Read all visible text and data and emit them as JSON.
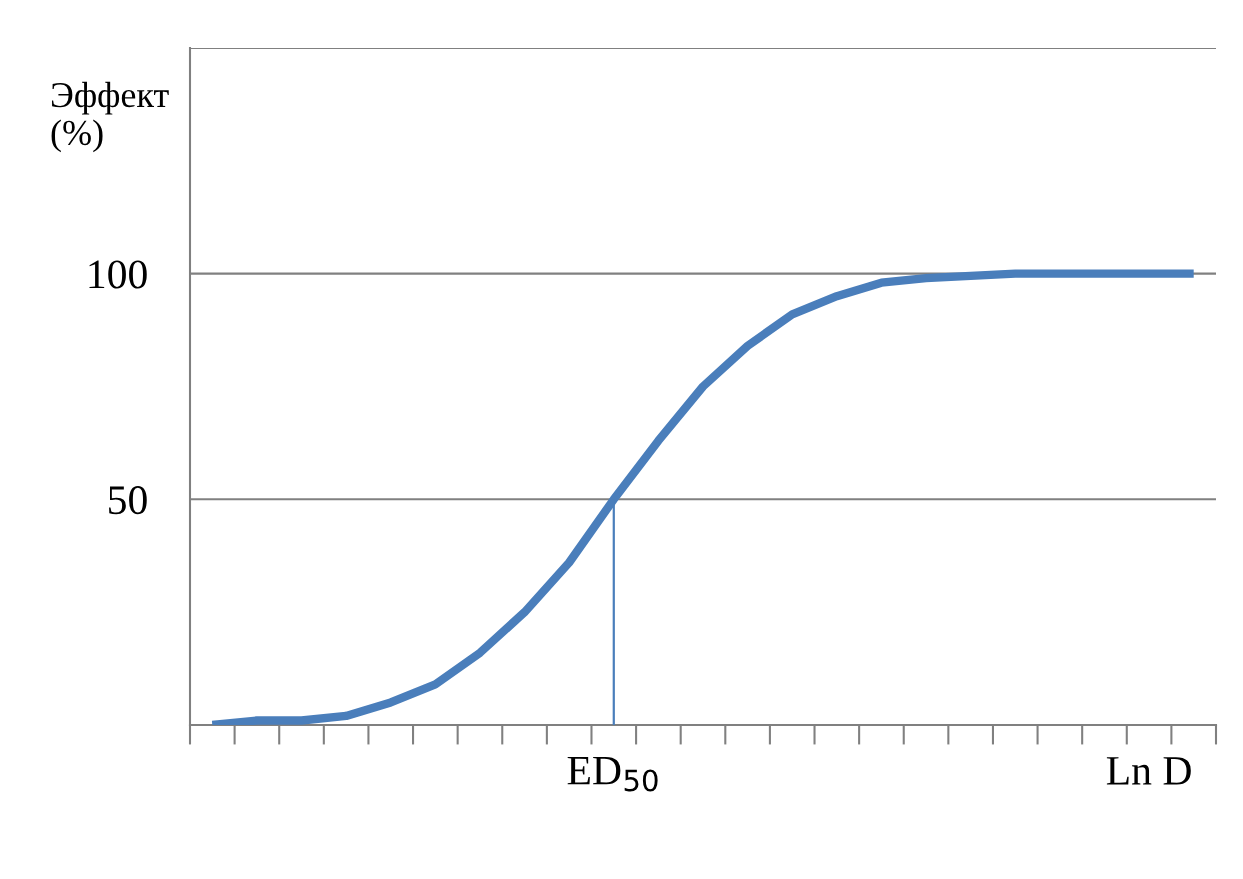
{
  "chart_data": {
    "type": "line",
    "ylabel": "Эффект\n(%)",
    "categories": [
      null,
      null,
      null,
      null,
      null,
      null,
      null,
      null,
      null,
      "ED$_{50}$",
      null,
      null,
      null,
      null,
      null,
      null,
      null,
      null,
      null,
      null,
      null,
      "Ln D",
      null
    ],
    "series": [
      {
        "color": "#4a7ebb",
        "values": [
          0,
          1,
          1,
          2,
          5,
          9,
          16,
          25,
          36,
          50,
          63,
          75,
          84,
          91,
          95,
          98,
          99,
          99.5,
          100,
          100,
          100,
          100,
          100
        ]
      },
      {
        "type": "line",
        "color": "#4a7ebb",
        "x": [
          "ED$_{50}$",
          "ED$_{50}$"
        ],
        "values": [
          0,
          50
        ]
      }
    ],
    "ylim": [
      0,
      150
    ],
    "yticks": [
      50,
      100,
      {
        "value": 150,
        "label": null
      }
    ],
    "grid": "y",
    "marker": "none",
    "line_style": "solid"
  }
}
